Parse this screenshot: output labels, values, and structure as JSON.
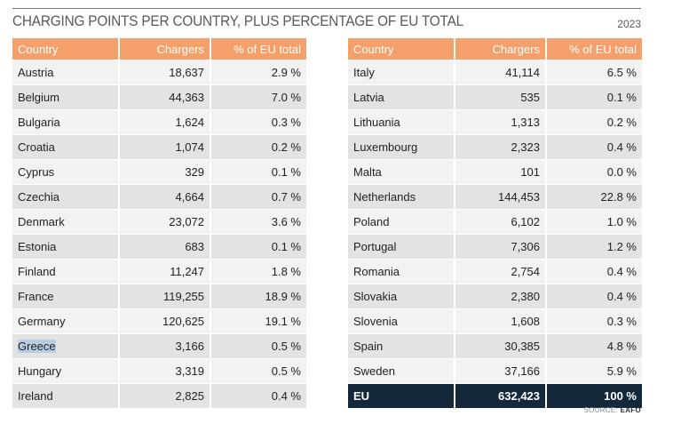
{
  "title": "CHARGING POINTS PER COUNTRY, PLUS PERCENTAGE OF EU TOTAL",
  "year": "2023",
  "source_prefix": "SOURCE:",
  "source_name": "EAFO",
  "colors": {
    "header": "#f5a06b",
    "row_light": "#f2f2f2",
    "row_dark": "#e3e3e3",
    "total_bg": "#13283a",
    "selection": "#b9cde3"
  },
  "chart_data": {
    "type": "table",
    "columns": [
      "Country",
      "Chargers",
      "% of EU total"
    ],
    "rows": [
      [
        "Austria",
        "18,637",
        "2.9 %"
      ],
      [
        "Belgium",
        "44,363",
        "7.0 %"
      ],
      [
        "Bulgaria",
        "1,624",
        "0.3 %"
      ],
      [
        "Croatia",
        "1,074",
        "0.2 %"
      ],
      [
        "Cyprus",
        "329",
        "0.1 %"
      ],
      [
        "Czechia",
        "4,664",
        "0.7 %"
      ],
      [
        "Denmark",
        "23,072",
        "3.6 %"
      ],
      [
        "Estonia",
        "683",
        "0.1 %"
      ],
      [
        "Finland",
        "11,247",
        "1.8 %"
      ],
      [
        "France",
        "119,255",
        "18.9 %"
      ],
      [
        "Germany",
        "120,625",
        "19.1 %"
      ],
      [
        "Greece",
        "3,166",
        "0.5 %"
      ],
      [
        "Hungary",
        "3,319",
        "0.5 %"
      ],
      [
        "Ireland",
        "2,825",
        "0.4 %"
      ],
      [
        "Italy",
        "41,114",
        "6.5 %"
      ],
      [
        "Latvia",
        "535",
        "0.1 %"
      ],
      [
        "Lithuania",
        "1,313",
        "0.2 %"
      ],
      [
        "Luxembourg",
        "2,323",
        "0.4 %"
      ],
      [
        "Malta",
        "101",
        "0.0 %"
      ],
      [
        "Netherlands",
        "144,453",
        "22.8 %"
      ],
      [
        "Poland",
        "6,102",
        "1.0 %"
      ],
      [
        "Portugal",
        "7,306",
        "1.2 %"
      ],
      [
        "Romania",
        "2,754",
        "0.4 %"
      ],
      [
        "Slovakia",
        "2,380",
        "0.4 %"
      ],
      [
        "Slovenia",
        "1,608",
        "0.3 %"
      ],
      [
        "Spain",
        "30,385",
        "4.8 %"
      ],
      [
        "Sweden",
        "37,166",
        "5.9 %"
      ]
    ],
    "total": [
      "EU",
      "632,423",
      "100 %"
    ],
    "selected_text": "Greece"
  }
}
